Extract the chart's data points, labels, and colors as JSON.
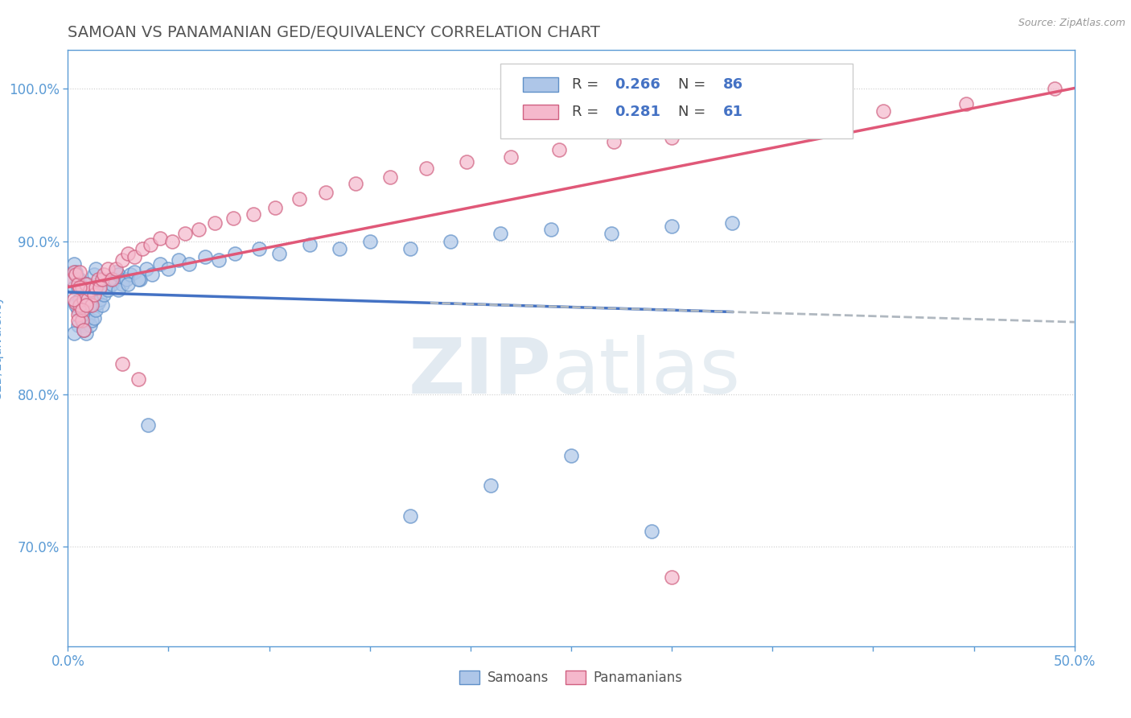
{
  "title": "SAMOAN VS PANAMANIAN GED/EQUIVALENCY CORRELATION CHART",
  "source_text": "Source: ZipAtlas.com",
  "ylabel": "GED/Equivalency",
  "xlim": [
    0.0,
    0.5
  ],
  "ylim": [
    0.635,
    1.025
  ],
  "xticks": [
    0.0,
    0.05,
    0.1,
    0.15,
    0.2,
    0.25,
    0.3,
    0.35,
    0.4,
    0.45,
    0.5
  ],
  "xticklabels": [
    "0.0%",
    "",
    "",
    "",
    "",
    "",
    "",
    "",
    "",
    "",
    "50.0%"
  ],
  "yticks": [
    0.7,
    0.8,
    0.9,
    1.0
  ],
  "yticklabels": [
    "70.0%",
    "80.0%",
    "90.0%",
    "100.0%"
  ],
  "title_color": "#555555",
  "title_fontsize": 14,
  "axis_color": "#5b9bd5",
  "tick_color": "#5b9bd5",
  "background_color": "#ffffff",
  "grid_color": "#cccccc",
  "samoan_color": "#aec6e8",
  "panamanian_color": "#f5b8cc",
  "samoan_edge_color": "#6090c8",
  "panamanian_edge_color": "#d06080",
  "samoan_line_color": "#4472c4",
  "panamanian_line_color": "#e05878",
  "dashed_line_color": "#b0b8c0",
  "legend_r_samoan": "0.266",
  "legend_n_samoan": "86",
  "legend_r_panamanian": "0.281",
  "legend_n_panamanian": "61",
  "samoan_x": [
    0.002,
    0.003,
    0.003,
    0.004,
    0.004,
    0.005,
    0.005,
    0.005,
    0.006,
    0.006,
    0.006,
    0.007,
    0.007,
    0.008,
    0.008,
    0.008,
    0.009,
    0.009,
    0.01,
    0.01,
    0.011,
    0.011,
    0.012,
    0.012,
    0.013,
    0.013,
    0.014,
    0.014,
    0.015,
    0.015,
    0.016,
    0.017,
    0.018,
    0.019,
    0.02,
    0.021,
    0.022,
    0.023,
    0.024,
    0.025,
    0.027,
    0.029,
    0.031,
    0.033,
    0.036,
    0.039,
    0.042,
    0.046,
    0.05,
    0.055,
    0.06,
    0.068,
    0.075,
    0.083,
    0.095,
    0.105,
    0.12,
    0.135,
    0.15,
    0.17,
    0.19,
    0.215,
    0.24,
    0.27,
    0.3,
    0.33,
    0.003,
    0.004,
    0.005,
    0.006,
    0.007,
    0.008,
    0.009,
    0.01,
    0.011,
    0.012,
    0.013,
    0.014,
    0.17,
    0.21,
    0.25,
    0.29,
    0.025,
    0.03,
    0.035,
    0.04
  ],
  "samoan_y": [
    0.875,
    0.885,
    0.87,
    0.86,
    0.88,
    0.855,
    0.87,
    0.845,
    0.862,
    0.858,
    0.875,
    0.85,
    0.865,
    0.845,
    0.855,
    0.868,
    0.84,
    0.858,
    0.85,
    0.862,
    0.845,
    0.862,
    0.848,
    0.86,
    0.85,
    0.865,
    0.855,
    0.868,
    0.86,
    0.872,
    0.862,
    0.858,
    0.865,
    0.87,
    0.868,
    0.875,
    0.872,
    0.875,
    0.88,
    0.878,
    0.872,
    0.875,
    0.878,
    0.88,
    0.875,
    0.882,
    0.878,
    0.885,
    0.882,
    0.888,
    0.885,
    0.89,
    0.888,
    0.892,
    0.895,
    0.892,
    0.898,
    0.895,
    0.9,
    0.895,
    0.9,
    0.905,
    0.908,
    0.905,
    0.91,
    0.912,
    0.84,
    0.858,
    0.875,
    0.862,
    0.852,
    0.842,
    0.865,
    0.872,
    0.858,
    0.868,
    0.878,
    0.882,
    0.72,
    0.74,
    0.76,
    0.71,
    0.868,
    0.872,
    0.875,
    0.78
  ],
  "panamanian_x": [
    0.002,
    0.003,
    0.004,
    0.004,
    0.005,
    0.005,
    0.006,
    0.006,
    0.007,
    0.007,
    0.008,
    0.009,
    0.01,
    0.011,
    0.012,
    0.013,
    0.014,
    0.015,
    0.016,
    0.017,
    0.018,
    0.02,
    0.022,
    0.024,
    0.027,
    0.03,
    0.033,
    0.037,
    0.041,
    0.046,
    0.052,
    0.058,
    0.065,
    0.073,
    0.082,
    0.092,
    0.103,
    0.115,
    0.128,
    0.143,
    0.16,
    0.178,
    0.198,
    0.22,
    0.244,
    0.271,
    0.3,
    0.332,
    0.367,
    0.405,
    0.446,
    0.49,
    0.003,
    0.005,
    0.006,
    0.007,
    0.008,
    0.009,
    0.027,
    0.035,
    0.3
  ],
  "panamanian_y": [
    0.875,
    0.88,
    0.86,
    0.878,
    0.852,
    0.872,
    0.858,
    0.88,
    0.848,
    0.87,
    0.862,
    0.872,
    0.862,
    0.868,
    0.858,
    0.865,
    0.87,
    0.875,
    0.87,
    0.875,
    0.878,
    0.882,
    0.875,
    0.882,
    0.888,
    0.892,
    0.89,
    0.895,
    0.898,
    0.902,
    0.9,
    0.905,
    0.908,
    0.912,
    0.915,
    0.918,
    0.922,
    0.928,
    0.932,
    0.938,
    0.942,
    0.948,
    0.952,
    0.955,
    0.96,
    0.965,
    0.968,
    0.975,
    0.978,
    0.985,
    0.99,
    1.0,
    0.862,
    0.848,
    0.87,
    0.855,
    0.842,
    0.858,
    0.82,
    0.81,
    0.68
  ]
}
